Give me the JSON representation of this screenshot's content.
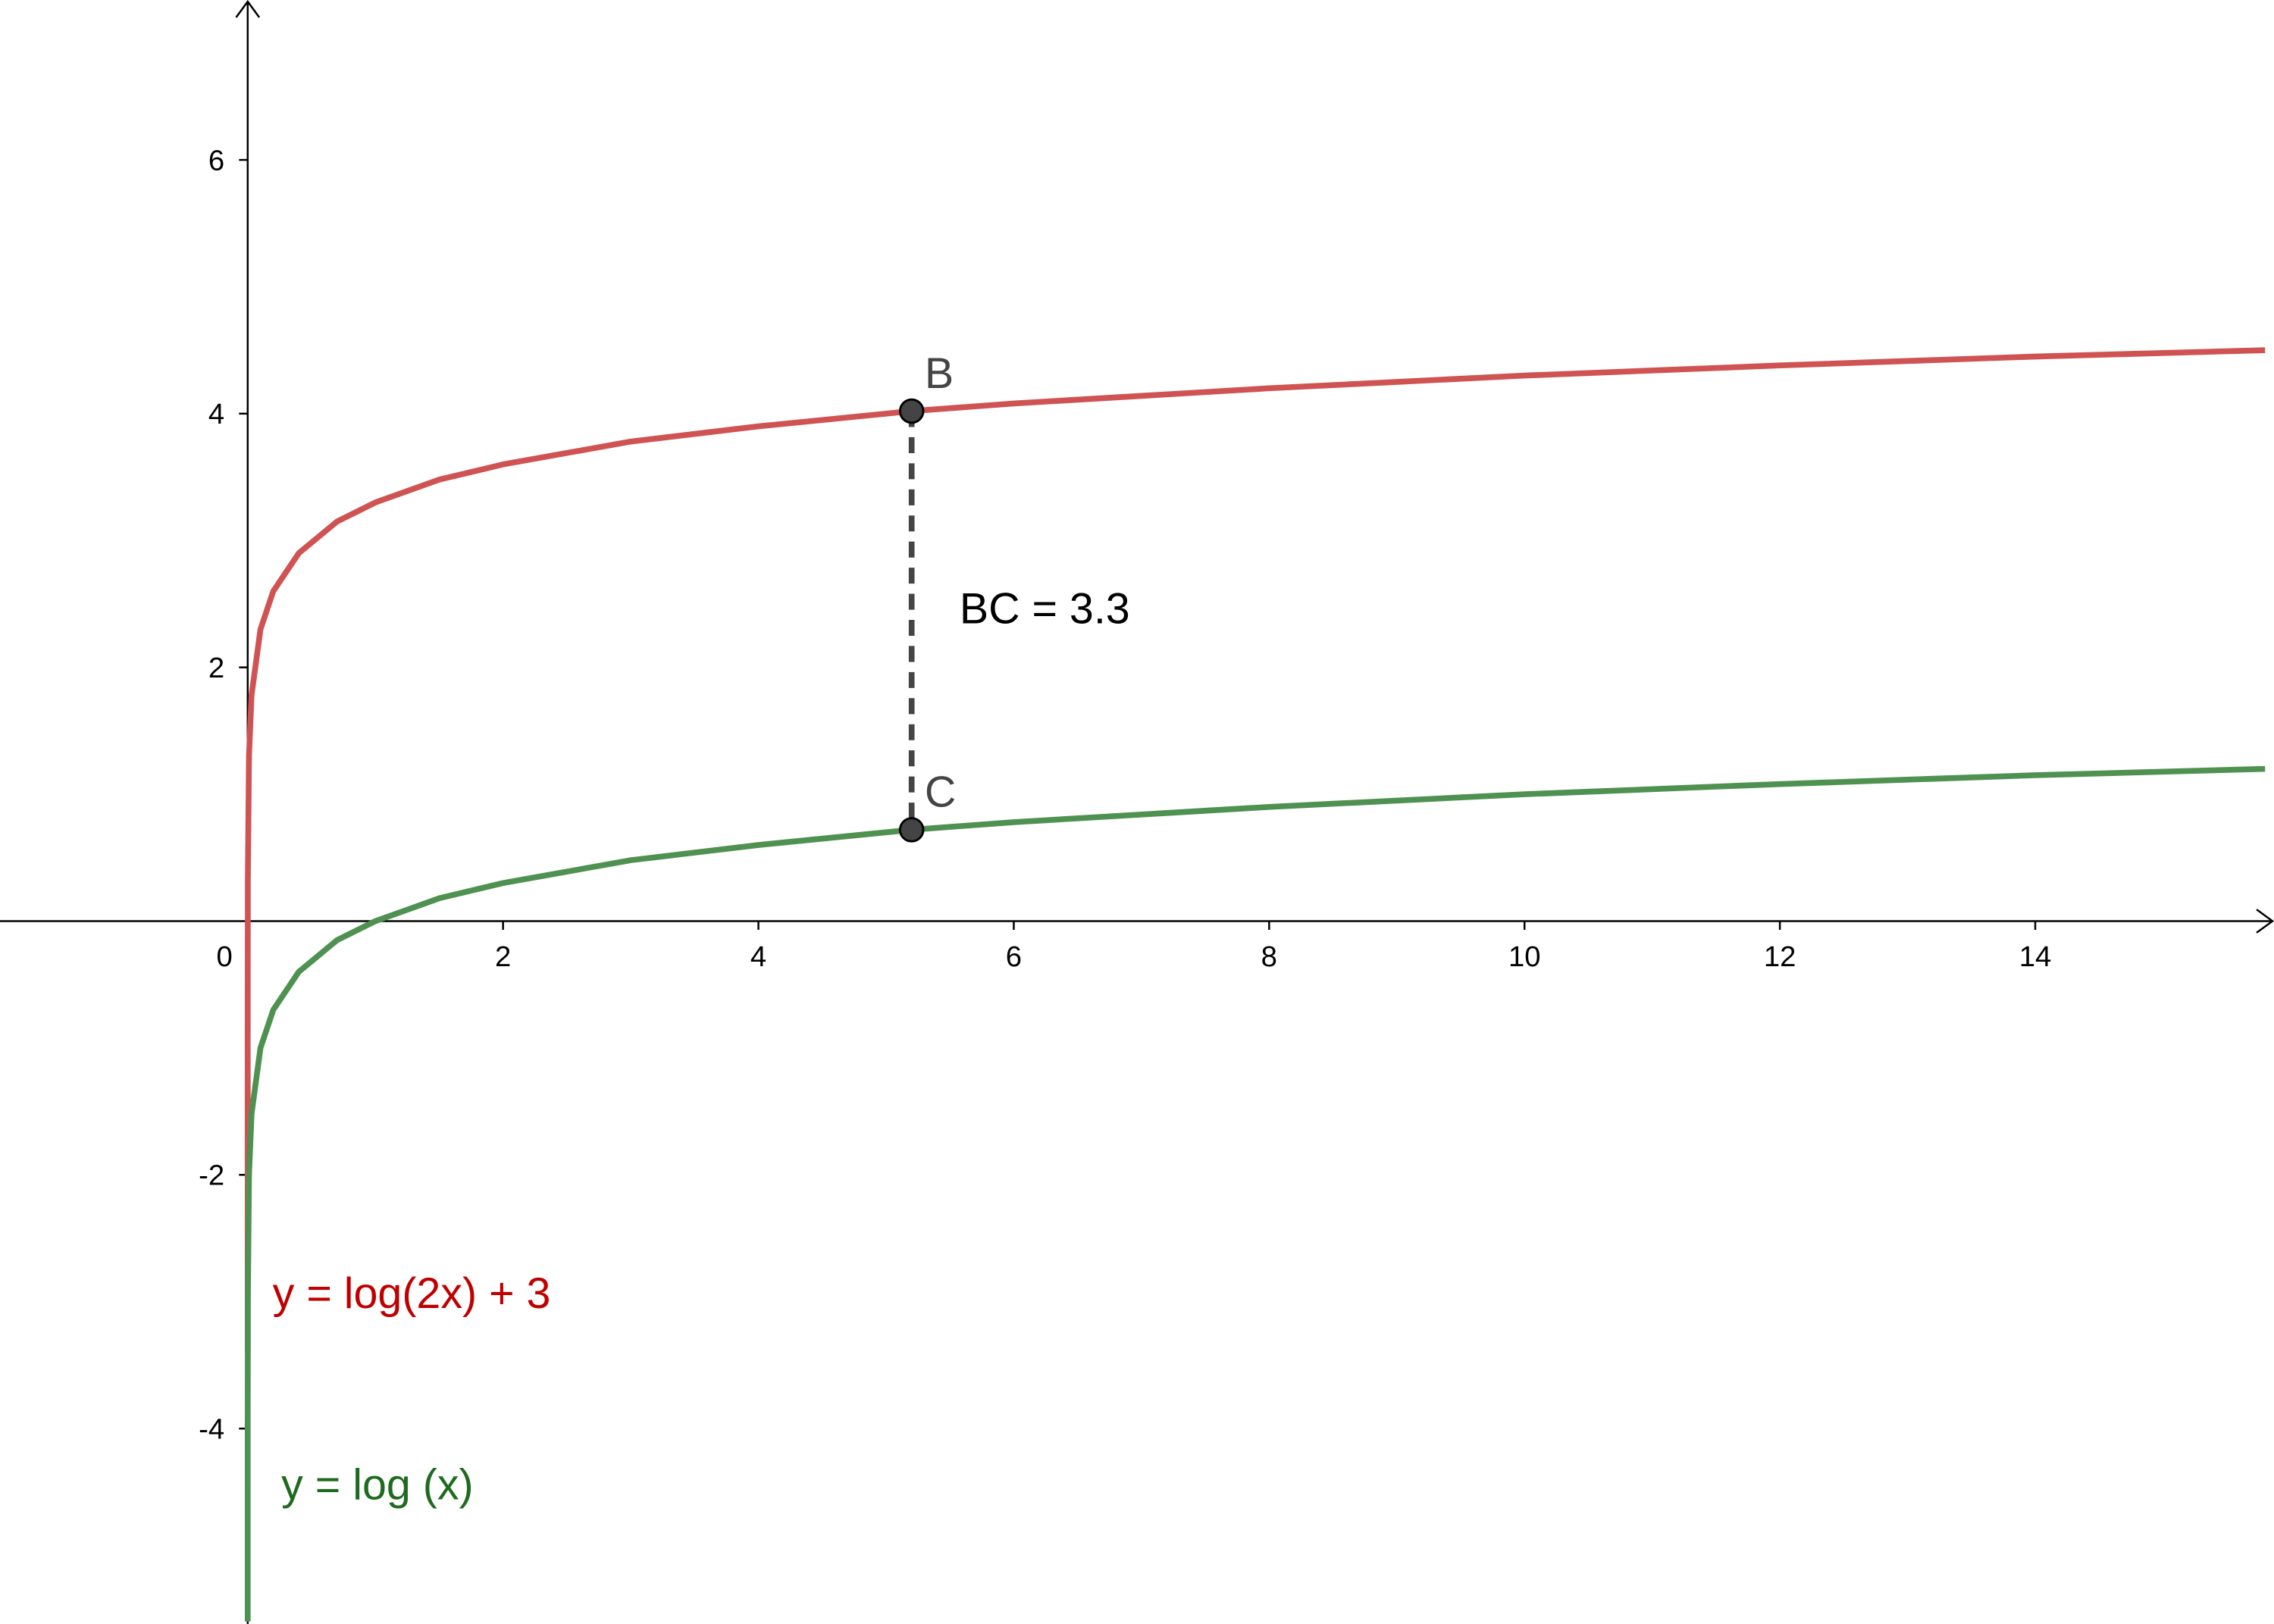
{
  "chart_data": {
    "type": "line",
    "x": [
      2e-07,
      3e-06,
      1e-05,
      0.0001,
      0.001,
      0.01,
      0.03,
      0.1,
      0.2,
      0.4,
      0.7,
      1,
      1.5,
      2,
      3,
      4,
      5.2,
      6,
      8,
      10,
      12,
      14,
      15.8
    ],
    "series": [
      {
        "name": "y = log(2x) + 3",
        "color": "#d05353",
        "label_color": "#c00000",
        "values": [
          -3.4,
          -2.22,
          -1.7,
          -0.7,
          0.3,
          1.3,
          1.78,
          2.3,
          2.6,
          2.9,
          3.15,
          3.3,
          3.48,
          3.6,
          3.78,
          3.9,
          4.02,
          4.08,
          4.2,
          4.3,
          4.38,
          4.45,
          4.5
        ]
      },
      {
        "name": "y = log (x)",
        "color": "#4f9150",
        "label_color": "#1e6b1e",
        "values": [
          null,
          -5.52,
          -5,
          -4,
          -3,
          -2,
          -1.52,
          -1,
          -0.7,
          -0.4,
          -0.15,
          0,
          0.18,
          0.3,
          0.48,
          0.6,
          0.72,
          0.78,
          0.9,
          1,
          1.08,
          1.15,
          1.2
        ]
      }
    ],
    "points": [
      {
        "label": "B",
        "x": 5.2,
        "y": 4.02
      },
      {
        "label": "C",
        "x": 5.2,
        "y": 0.72
      }
    ],
    "segment_label": "BC = 3.3",
    "xlim": [
      -1.94,
      15.87
    ],
    "ylim": [
      -5.54,
      7.26
    ],
    "xticks": [
      0,
      2,
      4,
      6,
      8,
      10,
      12,
      14
    ],
    "yticks": [
      -4,
      -2,
      2,
      4,
      6
    ]
  }
}
